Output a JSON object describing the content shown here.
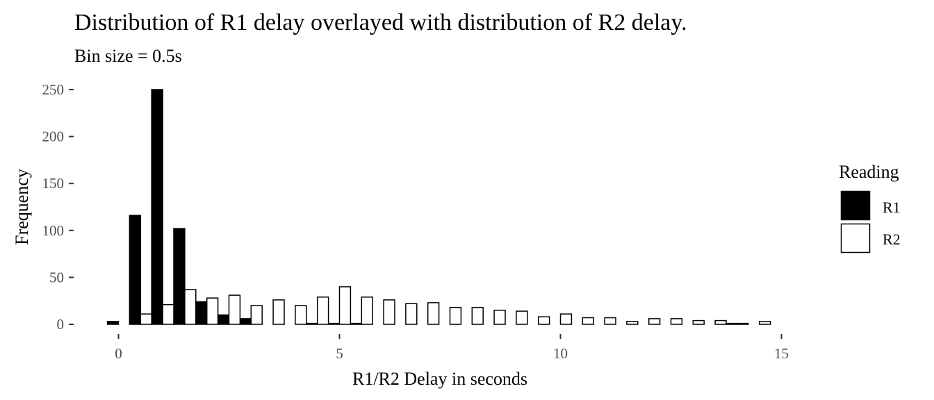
{
  "chart_data": {
    "type": "bar",
    "title": "Distribution of R1 delay overlayed with distribution of R2 delay.",
    "subtitle": "Bin size = 0.5s",
    "xlabel": "R1/R2 Delay in seconds",
    "ylabel": "Frequency",
    "xlim": [
      -0.5,
      15
    ],
    "ylim": [
      0,
      250
    ],
    "xticks": [
      0,
      5,
      10,
      15
    ],
    "yticks": [
      0,
      50,
      100,
      150,
      200,
      250
    ],
    "grid": false,
    "legend": {
      "title": "Reading",
      "position": "right",
      "entries": [
        "R1",
        "R2"
      ]
    },
    "bin_width": 0.5,
    "x": [
      0,
      0.5,
      1,
      1.5,
      2,
      2.5,
      3,
      3.5,
      4,
      4.5,
      5,
      5.5,
      6,
      6.5,
      7,
      7.5,
      8,
      8.5,
      9,
      9.5,
      10,
      10.5,
      11,
      11.5,
      12,
      12.5,
      13,
      13.5,
      14,
      14.5
    ],
    "series": [
      {
        "name": "R1",
        "color": "#000000",
        "values": [
          3,
          116,
          250,
          102,
          24,
          10,
          6,
          0,
          0,
          1,
          1,
          1,
          0,
          0,
          0,
          0,
          0,
          0,
          0,
          0,
          0,
          0,
          0,
          0,
          0,
          0,
          0,
          0,
          1,
          0
        ]
      },
      {
        "name": "R2",
        "color": "#ffffff",
        "values": [
          0,
          11,
          21,
          37,
          28,
          31,
          20,
          26,
          20,
          29,
          40,
          29,
          26,
          22,
          23,
          18,
          18,
          15,
          14,
          8,
          11,
          7,
          7,
          3,
          6,
          6,
          4,
          4,
          1,
          3
        ]
      }
    ]
  }
}
